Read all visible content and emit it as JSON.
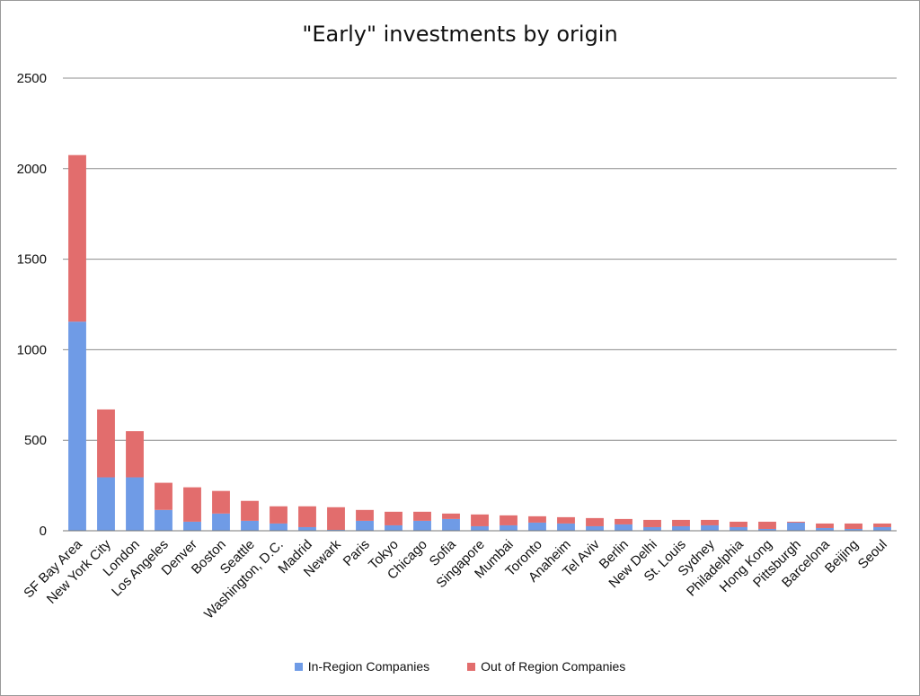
{
  "chart_data": {
    "type": "bar",
    "stacked": true,
    "title": "\"Early\" investments by origin",
    "xlabel": "",
    "ylabel": "",
    "ylim": [
      0,
      2500
    ],
    "yticks": [
      0,
      500,
      1000,
      1500,
      2000,
      2500
    ],
    "grid": true,
    "legend_position": "bottom",
    "categories": [
      "SF Bay Area",
      "New York City",
      "London",
      "Los Angeles",
      "Denver",
      "Boston",
      "Seattle",
      "Washington, D.C.",
      "Madrid",
      "Newark",
      "Paris",
      "Tokyo",
      "Chicago",
      "Sofia",
      "Singapore",
      "Mumbai",
      "Toronto",
      "Anaheim",
      "Tel Aviv",
      "Berlin",
      "New Delhi",
      "St. Louis",
      "Sydney",
      "Philadelphia",
      "Hong Kong",
      "Pittsburgh",
      "Barcelona",
      "Beijing",
      "Seoul"
    ],
    "series": [
      {
        "name": "In-Region Companies",
        "color": "#6f9be6",
        "values": [
          1155,
          295,
          295,
          115,
          50,
          95,
          55,
          40,
          20,
          5,
          55,
          30,
          55,
          65,
          25,
          30,
          45,
          40,
          25,
          35,
          20,
          25,
          30,
          20,
          10,
          45,
          15,
          10,
          20
        ]
      },
      {
        "name": "Out of Region Companies",
        "color": "#e26d6d",
        "values": [
          920,
          375,
          255,
          150,
          190,
          125,
          110,
          95,
          115,
          125,
          60,
          75,
          50,
          30,
          65,
          55,
          35,
          35,
          45,
          30,
          40,
          35,
          30,
          30,
          40,
          5,
          25,
          30,
          20
        ]
      }
    ]
  }
}
